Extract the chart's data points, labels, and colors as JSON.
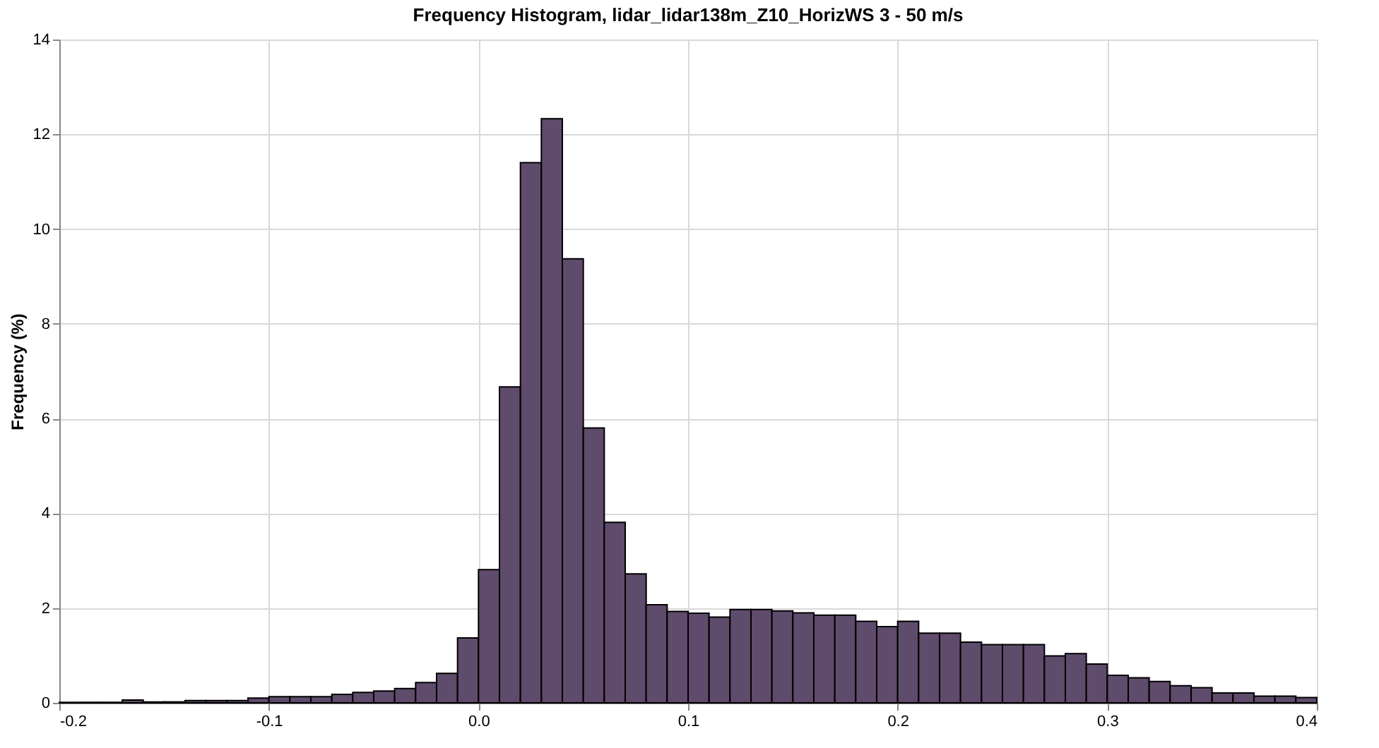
{
  "chart_data": {
    "type": "histogram",
    "title": "Frequency Histogram, lidar_lidar138m_Z10_HorizWS 3 - 50 m/s",
    "ylabel": "Frequency (%)",
    "bins": [
      -0.2,
      -0.19,
      -0.18,
      -0.17,
      -0.16,
      -0.15,
      -0.14,
      -0.13,
      -0.12,
      -0.11,
      -0.1,
      -0.09,
      -0.08,
      -0.07,
      -0.06,
      -0.05,
      -0.04,
      -0.03,
      -0.02,
      -0.01,
      0.0,
      0.01,
      0.02,
      0.03,
      0.04,
      0.05,
      0.06,
      0.07,
      0.08,
      0.09,
      0.1,
      0.11,
      0.12,
      0.13,
      0.14,
      0.15,
      0.16,
      0.17,
      0.18,
      0.19,
      0.2,
      0.21,
      0.22,
      0.23,
      0.24,
      0.25,
      0.26,
      0.27,
      0.28,
      0.29,
      0.3,
      0.31,
      0.32,
      0.33,
      0.34,
      0.35,
      0.36,
      0.37,
      0.38,
      0.39,
      0.4
    ],
    "values": [
      0.01,
      0.01,
      0.01,
      0.06,
      0.02,
      0.02,
      0.05,
      0.05,
      0.05,
      0.1,
      0.13,
      0.13,
      0.13,
      0.18,
      0.22,
      0.25,
      0.3,
      0.43,
      0.62,
      1.37,
      2.81,
      6.67,
      11.4,
      12.33,
      9.37,
      5.8,
      3.81,
      2.72,
      2.07,
      1.93,
      1.89,
      1.81,
      1.97,
      1.97,
      1.94,
      1.9,
      1.85,
      1.85,
      1.72,
      1.61,
      1.72,
      1.47,
      1.47,
      1.28,
      1.23,
      1.23,
      1.23,
      0.99,
      1.04,
      0.82,
      0.58,
      0.53,
      0.45,
      0.36,
      0.32,
      0.21,
      0.21,
      0.14,
      0.14,
      0.11
    ],
    "color": "#5f4b6b",
    "xlim": [
      -0.2,
      0.4
    ],
    "xticks": [
      {
        "value": -0.2,
        "label": "-0.2"
      },
      {
        "value": -0.1,
        "label": "-0.1"
      },
      {
        "value": 0.0,
        "label": "0.0"
      },
      {
        "value": 0.1,
        "label": "0.1"
      },
      {
        "value": 0.2,
        "label": "0.2"
      },
      {
        "value": 0.3,
        "label": "0.3"
      },
      {
        "value": 0.4,
        "label": "0.4"
      }
    ],
    "ylim": [
      0,
      14
    ],
    "yticks": [
      0,
      2,
      4,
      6,
      8,
      10,
      12,
      14
    ],
    "grid": true
  }
}
